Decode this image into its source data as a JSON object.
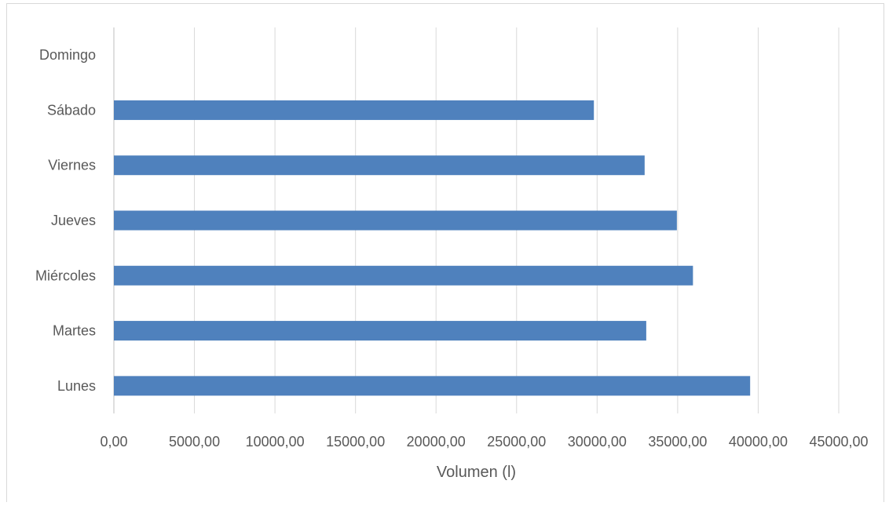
{
  "chart_data": {
    "type": "bar",
    "orientation": "horizontal",
    "categories": [
      "Lunes",
      "Martes",
      "Miércoles",
      "Jueves",
      "Viernes",
      "Sábado",
      "Domingo"
    ],
    "values": [
      39500,
      33050,
      35950,
      34950,
      32950,
      29800,
      0
    ],
    "title": "",
    "xlabel": "Volumen (l)",
    "ylabel": "",
    "xlim": [
      0,
      45000
    ],
    "x_ticks": [
      0,
      5000,
      10000,
      15000,
      20000,
      25000,
      30000,
      35000,
      40000,
      45000
    ],
    "x_tick_labels": [
      "0,00",
      "5000,00",
      "10000,00",
      "15000,00",
      "20000,00",
      "25000,00",
      "30000,00",
      "35000,00",
      "40000,00",
      "45000,00"
    ],
    "grid": "vertical",
    "legend": "none",
    "bar_color": "#4f81bd",
    "grid_color": "#d9d9d9"
  }
}
